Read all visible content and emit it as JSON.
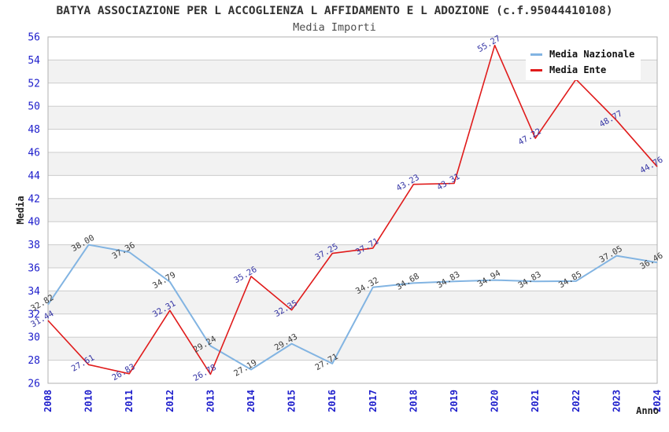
{
  "chart": {
    "title": "BATYA ASSOCIAZIONE PER L ACCOGLIENZA L AFFIDAMENTO E L ADOZIONE (c.f.95044410108)",
    "subtitle": "Media Importi",
    "y_axis_label": "Media",
    "x_axis_label": "Anno"
  },
  "legend": {
    "position": "top-right",
    "items": [
      {
        "label": "Media Nazionale",
        "color": "#82b4e2"
      },
      {
        "label": "Media Ente",
        "color": "#e01b1b"
      }
    ]
  },
  "chart_data": {
    "type": "line",
    "categories": [
      "2008",
      "2010",
      "2011",
      "2012",
      "2013",
      "2014",
      "2015",
      "2016",
      "2017",
      "2018",
      "2019",
      "2020",
      "2021",
      "2022",
      "2023",
      "2024"
    ],
    "series": [
      {
        "name": "Media Nazionale",
        "color": "#82b4e2",
        "label_color": "#3a3a3a",
        "values": [
          32.82,
          38.0,
          37.36,
          34.79,
          29.24,
          27.19,
          29.43,
          27.71,
          34.32,
          34.68,
          34.83,
          34.94,
          34.83,
          34.85,
          37.05,
          36.46
        ],
        "labels": [
          "32.82",
          "38.00",
          "37.36",
          "34.79",
          "29.24",
          "27.19",
          "29.43",
          "27.71",
          "34.32",
          "34.68",
          "34.83",
          "34.94",
          "34.83",
          "34.85",
          "37.05",
          "36.46"
        ]
      },
      {
        "name": "Media Ente",
        "color": "#e01b1b",
        "label_color": "#3434a4",
        "values": [
          31.44,
          27.61,
          26.83,
          32.31,
          26.78,
          35.26,
          32.35,
          37.25,
          37.71,
          43.23,
          43.31,
          55.27,
          47.22,
          52.33,
          48.77,
          44.76
        ],
        "labels": [
          "31.44",
          "27.61",
          "26.83",
          "32.31",
          "26.78",
          "35.26",
          "32.35",
          "37.25",
          "37.71",
          "43.23",
          "43.31",
          "55.27",
          "47.22",
          "",
          "48.77",
          "44.76"
        ]
      }
    ],
    "title": "Media Importi",
    "xlabel": "Anno",
    "ylabel": "Media",
    "ylim": [
      26,
      56
    ],
    "y_ticks": [
      26,
      28,
      30,
      32,
      34,
      36,
      38,
      40,
      42,
      44,
      46,
      48,
      50,
      52,
      54,
      56
    ],
    "grid": true,
    "legend_position": "top-right"
  },
  "colors": {
    "tick_label": "#2020cc",
    "grid_line": "#cccccc",
    "band_fill": "#f2f2f2",
    "plot_border": "#b0b0b0",
    "axis_name": "#222222",
    "title": "#333333",
    "subtitle": "#4d4d4d"
  }
}
